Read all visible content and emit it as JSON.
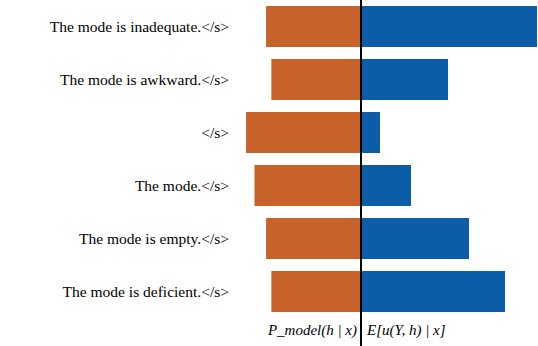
{
  "chart_data": [
    {
      "type": "bar",
      "orientation": "horizontal",
      "categories": [
        "The mode is inadequate.</s>",
        "The mode is awkward.</s>",
        "</s>",
        "The mode.</s>",
        "The mode is empty.</s>",
        "The mode is deficient.</s>"
      ],
      "values": [
        90,
        85,
        109,
        101,
        90,
        85
      ],
      "color": "#c8622b",
      "xlim": [
        0,
        110
      ],
      "xlabel": "P_model(h | x)",
      "tick_labels": "y"
    },
    {
      "type": "bar",
      "orientation": "horizontal",
      "values": [
        176,
        87,
        19,
        50,
        108,
        144
      ],
      "color": "#0b5da8",
      "xlim": [
        0,
        177
      ],
      "xlabel": "E[u(Y, h) | x]",
      "tick_labels": false
    }
  ]
}
